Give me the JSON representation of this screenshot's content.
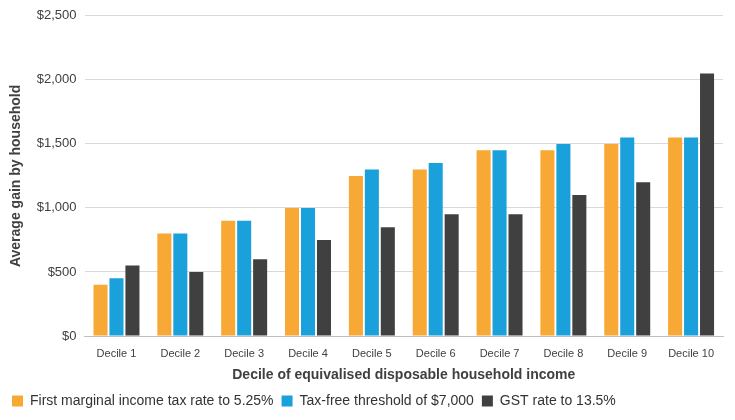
{
  "chart_data": {
    "type": "bar",
    "x_label": "Decile of equivalised disposable household income",
    "y_label": "Average gain by household",
    "categories": [
      "Decile 1",
      "Decile 2",
      "Decile 3",
      "Decile 4",
      "Decile 5",
      "Decile 6",
      "Decile 7",
      "Decile 8",
      "Decile 9",
      "Decile 10"
    ],
    "series": [
      {
        "name": "First marginal income tax rate to 5.25%",
        "color": "#f7a835",
        "values": [
          400,
          800,
          900,
          1000,
          1250,
          1300,
          1450,
          1450,
          1500,
          1550
        ]
      },
      {
        "name": "Tax-free threshold of $7,000",
        "color": "#1aa0db",
        "values": [
          450,
          800,
          900,
          1000,
          1300,
          1350,
          1450,
          1500,
          1550,
          1550
        ]
      },
      {
        "name": "GST rate to 13.5%",
        "color": "#404040",
        "values": [
          550,
          500,
          600,
          750,
          850,
          950,
          950,
          1100,
          1200,
          2050
        ]
      }
    ],
    "ylim": [
      0,
      2500
    ],
    "yticks": [
      {
        "value": 0,
        "label": "$0"
      },
      {
        "value": 500,
        "label": "$500"
      },
      {
        "value": 1000,
        "label": "$1,000"
      },
      {
        "value": 1500,
        "label": "$1,500"
      },
      {
        "value": 2000,
        "label": "$2,000"
      },
      {
        "value": 2500,
        "label": "$2,500"
      }
    ],
    "grid": true,
    "legend": "bottom"
  }
}
